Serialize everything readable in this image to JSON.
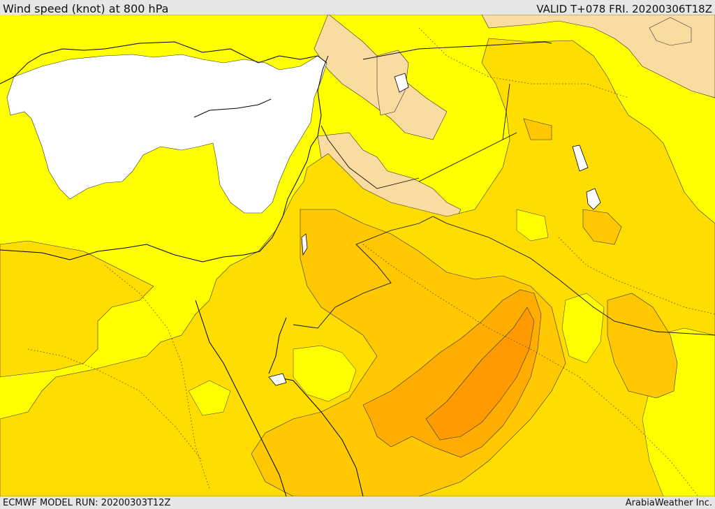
{
  "header": {
    "title": "Wind speed (knot) at 800 hPa",
    "valid": "VALID T+078 FRI. 20200306T18Z"
  },
  "footer": {
    "model_run": "ECMWF MODEL RUN: 20200303T12Z",
    "credit": "ArabiaWeather Inc."
  },
  "colors": {
    "calm_white": "#ffffff",
    "light_peach": "#fbdca0",
    "yellow": "#ffff00",
    "gold": "#ffdd00",
    "light_orange": "#ffc800",
    "orange": "#ffad00",
    "dark_orange": "#ff9a00",
    "coastline": "#000000"
  }
}
